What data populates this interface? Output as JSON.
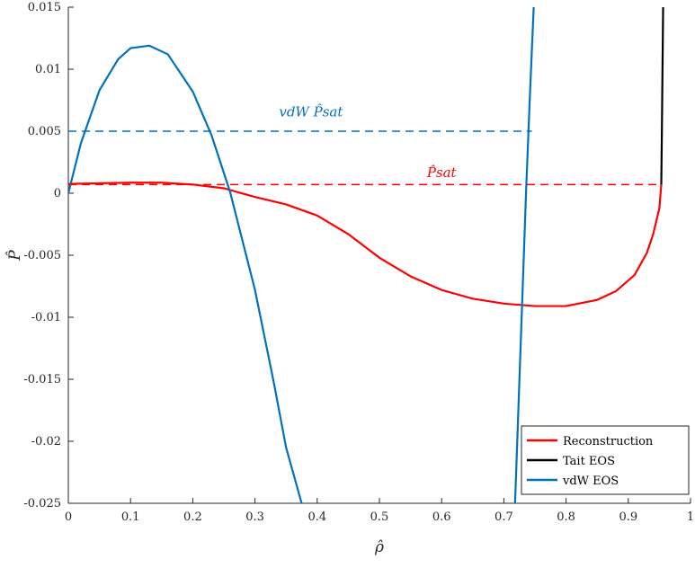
{
  "chart_data": {
    "type": "line",
    "xlabel": "ρ̂",
    "ylabel": "P̂",
    "xlim": [
      0,
      1
    ],
    "ylim": [
      -0.025,
      0.015
    ],
    "x_ticks": [
      "0",
      "0.1",
      "0.2",
      "0.3",
      "0.4",
      "0.5",
      "0.6",
      "0.7",
      "0.8",
      "0.9",
      "1"
    ],
    "x_tick_values": [
      0,
      0.1,
      0.2,
      0.3,
      0.4,
      0.5,
      0.6,
      0.7,
      0.8,
      0.9,
      1
    ],
    "y_ticks": [
      "0.015",
      "0.01",
      "0.005",
      "0",
      "-0.005",
      "-0.01",
      "-0.015",
      "-0.02",
      "-0.025"
    ],
    "y_tick_values": [
      0.015,
      0.01,
      0.005,
      0,
      -0.005,
      -0.01,
      -0.015,
      -0.02,
      -0.025
    ],
    "grid": false,
    "legend_position": "bottom-right",
    "series": [
      {
        "name": "Reconstruction",
        "color": "#ff0000",
        "style": "solid",
        "x": [
          0,
          0.05,
          0.1,
          0.15,
          0.2,
          0.25,
          0.3,
          0.35,
          0.4,
          0.45,
          0.5,
          0.55,
          0.6,
          0.65,
          0.7,
          0.75,
          0.8,
          0.85,
          0.88,
          0.91,
          0.93,
          0.94,
          0.95,
          0.953
        ],
        "y": [
          0.00075,
          0.0008,
          0.00085,
          0.00085,
          0.0007,
          0.0004,
          -0.0003,
          -0.0009,
          -0.0018,
          -0.0033,
          -0.0052,
          -0.0067,
          -0.0078,
          -0.0085,
          -0.0089,
          -0.0091,
          -0.0091,
          -0.0086,
          -0.0079,
          -0.0066,
          -0.0048,
          -0.0033,
          -0.0012,
          0.0007
        ]
      },
      {
        "name": "Tait EOS",
        "color": "#000000",
        "style": "solid",
        "x": [
          0.953,
          0.954,
          0.955,
          0.956
        ],
        "y": [
          0.0007,
          0.005,
          0.01,
          0.015
        ]
      },
      {
        "name": "vdW EOS",
        "color": "#0072bd",
        "style": "solid",
        "segments": [
          {
            "x": [
              0,
              0.02,
              0.05,
              0.08,
              0.1,
              0.13,
              0.16,
              0.2,
              0.23,
              0.26,
              0.3,
              0.33,
              0.35,
              0.375
            ],
            "y": [
              0,
              0.004,
              0.0083,
              0.0108,
              0.0117,
              0.0119,
              0.0112,
              0.0082,
              0.0047,
              0.0001,
              -0.0078,
              -0.0152,
              -0.0205,
              -0.025
            ]
          },
          {
            "x": [
              0.718,
              0.724,
              0.73,
              0.736,
              0.742,
              0.748
            ],
            "y": [
              -0.025,
              -0.0165,
              -0.008,
              0.0005,
              0.008,
              0.015
            ]
          }
        ]
      },
      {
        "name": "vdW P̂sat",
        "color": "#0072bd",
        "style": "dashed",
        "x": [
          0.0,
          0.745
        ],
        "y": [
          0.005,
          0.005
        ]
      },
      {
        "name": "P̂sat",
        "color": "#ff0000",
        "style": "dashed",
        "x": [
          0.0,
          0.953
        ],
        "y": [
          0.0007,
          0.0007
        ]
      }
    ],
    "annotations": [
      {
        "text": "vdW P̂sat",
        "x": 0.39,
        "y": 0.0062,
        "color": "#0072bd"
      },
      {
        "text": "P̂sat",
        "x": 0.6,
        "y": 0.0013,
        "color": "#ff0000"
      }
    ],
    "legend": [
      "Reconstruction",
      "Tait EOS",
      "vdW EOS"
    ]
  }
}
